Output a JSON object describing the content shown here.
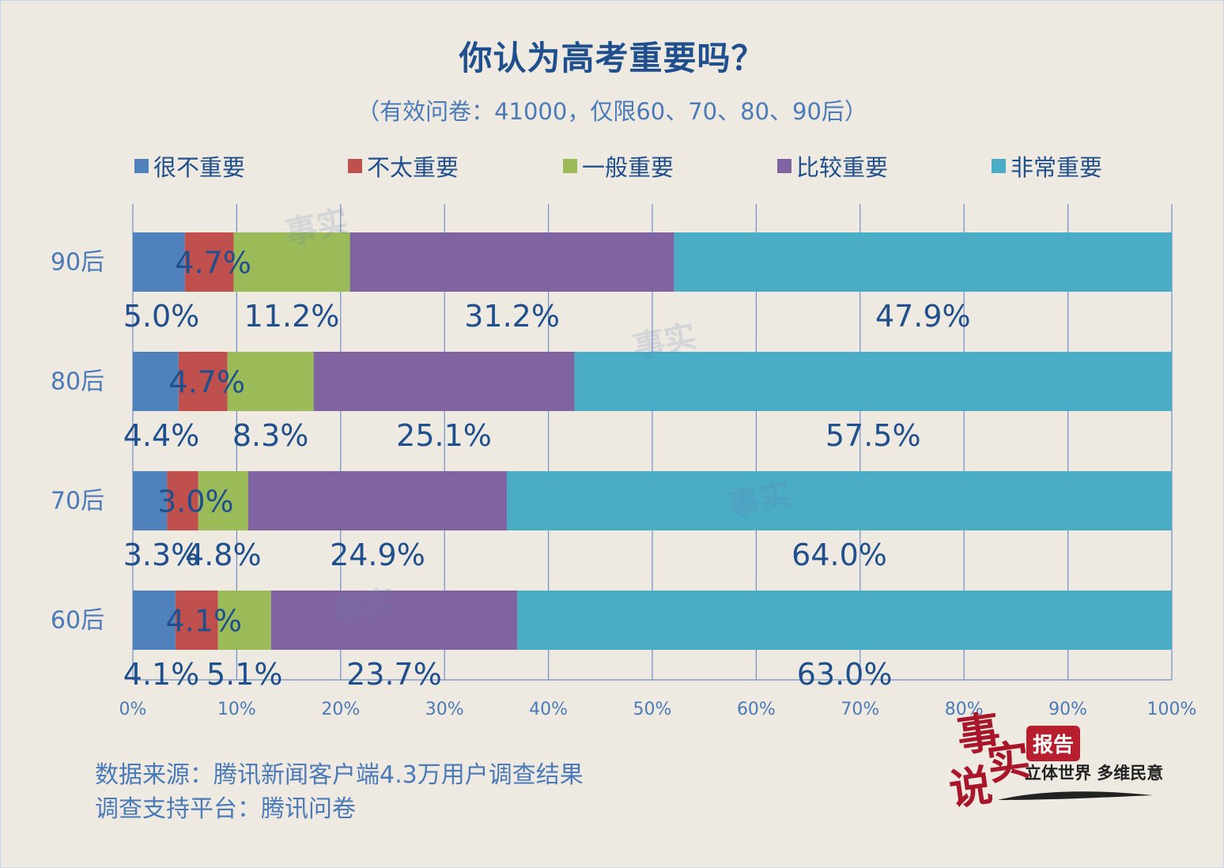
{
  "chart_data": {
    "type": "bar",
    "orientation": "horizontal",
    "stacked": true,
    "title": "你认为高考重要吗？",
    "subtitle": "（有效问卷：41000，仅限60、70、80、90后）",
    "categories": [
      "90后",
      "80后",
      "70后",
      "60后"
    ],
    "series": [
      {
        "name": "很不重要",
        "color": "#4f81bd",
        "values": [
          5.0,
          4.4,
          3.3,
          4.1
        ],
        "labels": [
          "5.0%",
          "4.4%",
          "3.3%",
          "4.1%"
        ]
      },
      {
        "name": "不太重要",
        "color": "#c0504d",
        "values": [
          4.7,
          4.7,
          3.0,
          4.1
        ],
        "labels": [
          "4.7%",
          "4.7%",
          "3.0%",
          "4.1%"
        ]
      },
      {
        "name": "一般重要",
        "color": "#9bbb59",
        "values": [
          11.2,
          8.3,
          4.8,
          5.1
        ],
        "labels": [
          "11.2%",
          "8.3%",
          "4.8%",
          "5.1%"
        ]
      },
      {
        "name": "比较重要",
        "color": "#8064a2",
        "values": [
          31.2,
          25.1,
          24.9,
          23.7
        ],
        "labels": [
          "31.2%",
          "25.1%",
          "24.9%",
          "23.7%"
        ]
      },
      {
        "name": "非常重要",
        "color": "#4bacc6",
        "values": [
          47.9,
          57.5,
          64.0,
          63.0
        ],
        "labels": [
          "47.9%",
          "57.5%",
          "64.0%",
          "63.0%"
        ]
      }
    ],
    "xlim": [
      0,
      100
    ],
    "x_ticks": [
      "0%",
      "10%",
      "20%",
      "30%",
      "40%",
      "50%",
      "60%",
      "70%",
      "80%",
      "90%",
      "100%"
    ],
    "grid": true,
    "legend_position": "top"
  },
  "footer": {
    "source": "数据来源：腾讯新闻客户端4.3万用户调查结果",
    "platform": "调查支持平台：腾讯问卷"
  },
  "logo": {
    "char1": "事",
    "char2": "实",
    "char3": "说",
    "badge": "报告",
    "slogan": "立体世界 多维民意"
  }
}
